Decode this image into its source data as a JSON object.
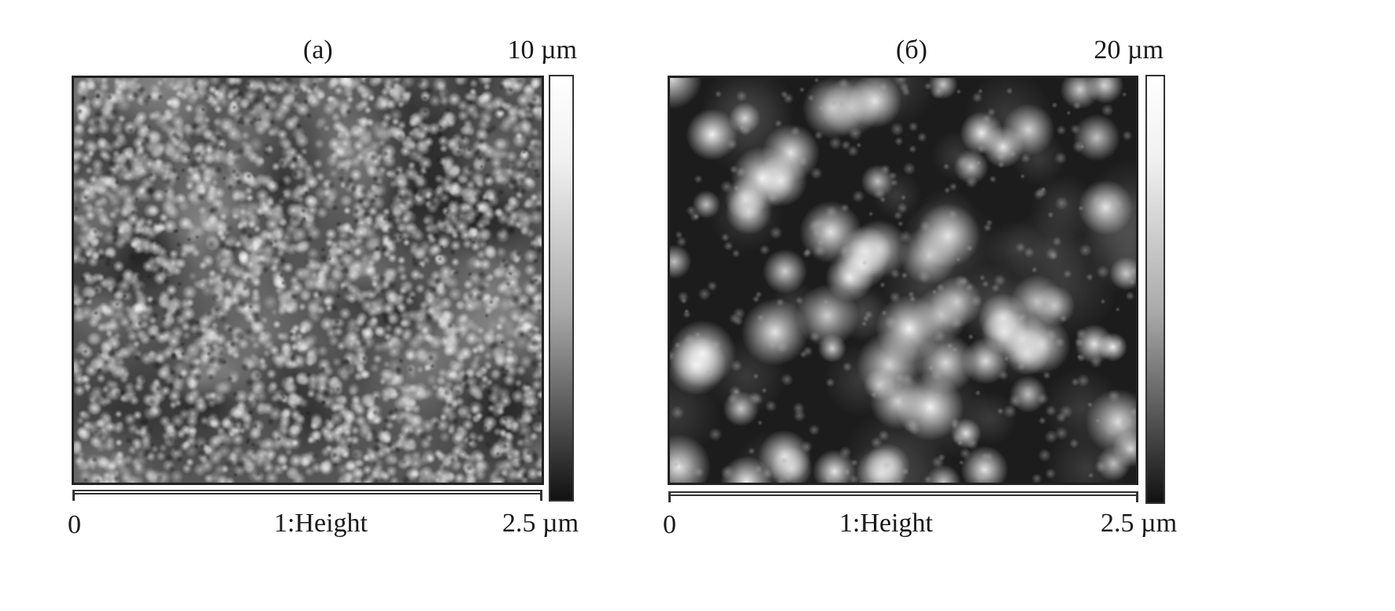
{
  "panels": [
    {
      "label": "(a)",
      "colorbar_max": "10 µm",
      "x_start": "0",
      "channel": "1:Height",
      "x_end": "2.5 µm",
      "texture": "dense-small-grains"
    },
    {
      "label": "(б)",
      "colorbar_max": "20 µm",
      "x_start": "0",
      "channel": "1:Height",
      "x_end": "2.5 µm",
      "texture": "large-round-grains"
    }
  ],
  "colors": {
    "colormap_low": "#000000",
    "colormap_high": "#ffffff"
  }
}
